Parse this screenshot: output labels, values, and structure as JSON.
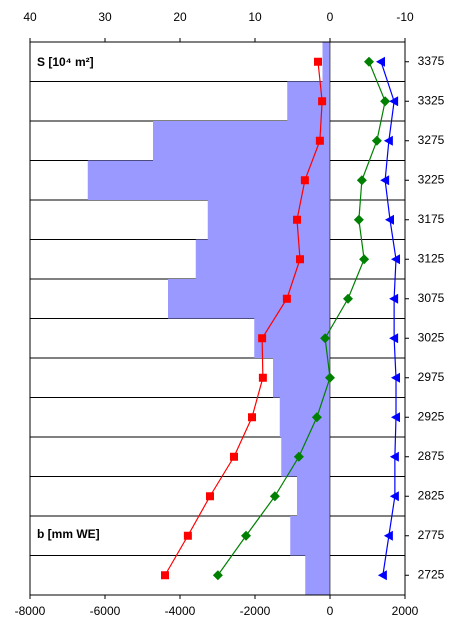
{
  "chart_data": [
    {
      "type": "bar",
      "orientation": "horizontal",
      "annotation": "S [10⁴ m²]",
      "color": "#9999ff",
      "categories": [
        "3375",
        "3325",
        "3275",
        "3225",
        "3175",
        "3125",
        "3075",
        "3025",
        "2975",
        "2925",
        "2875",
        "2825",
        "2775",
        "2725"
      ],
      "values": [
        1,
        5.7,
        23.6,
        32.3,
        16.3,
        17.9,
        21.6,
        10.1,
        7.6,
        6.7,
        6.5,
        4.4,
        5.3,
        3.3
      ],
      "xlim": [
        40,
        -10
      ],
      "xticks": [
        40,
        30,
        20,
        10,
        0,
        -10
      ],
      "grid": true
    },
    {
      "type": "line",
      "annotation": "b [mm WE]",
      "series": [
        {
          "color": "#ff0000",
          "marker": "square",
          "values": [
            -320,
            -210,
            -270,
            -670,
            -880,
            -800,
            -1150,
            -1810,
            -1790,
            -2080,
            -2560,
            -3200,
            -3790,
            -4400
          ]
        },
        {
          "color": "#008000",
          "marker": "diamond",
          "values": [
            1040,
            1470,
            1250,
            850,
            770,
            910,
            480,
            -130,
            0,
            -350,
            -830,
            -1470,
            -2240,
            -2990
          ]
        },
        {
          "color": "#0000ff",
          "marker": "triangle",
          "values": [
            1360,
            1710,
            1570,
            1470,
            1600,
            1760,
            1710,
            1710,
            1760,
            1760,
            1730,
            1730,
            1570,
            1410
          ]
        }
      ],
      "xlim": [
        -8000,
        2000
      ],
      "xticks": [
        -8000,
        -6000,
        -4000,
        -2000,
        0,
        2000
      ]
    }
  ]
}
